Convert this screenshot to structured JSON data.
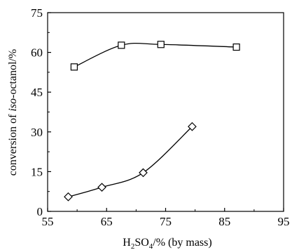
{
  "chart_data": {
    "type": "line",
    "xlabel": {
      "h": "H",
      "sub2": "2",
      "so": "SO",
      "sub4": "4",
      "rest": "/% (by mass)"
    },
    "ylabel": {
      "pre": "conversion of ",
      "italic": "iso",
      "post": "-octanol/%"
    },
    "xlim": [
      55,
      95
    ],
    "ylim": [
      0,
      75
    ],
    "xticks": [
      55,
      65,
      75,
      85,
      95
    ],
    "yticks": [
      0,
      15,
      30,
      45,
      60,
      75
    ],
    "grid": false,
    "series": [
      {
        "marker": "square",
        "x": [
          59.5,
          67.5,
          74.2,
          87.0
        ],
        "y": [
          54.5,
          62.7,
          63.0,
          62.0
        ]
      },
      {
        "marker": "diamond",
        "x": [
          58.5,
          64.2,
          71.2,
          79.5
        ],
        "y": [
          5.5,
          9.1,
          14.6,
          32.0
        ]
      }
    ]
  }
}
